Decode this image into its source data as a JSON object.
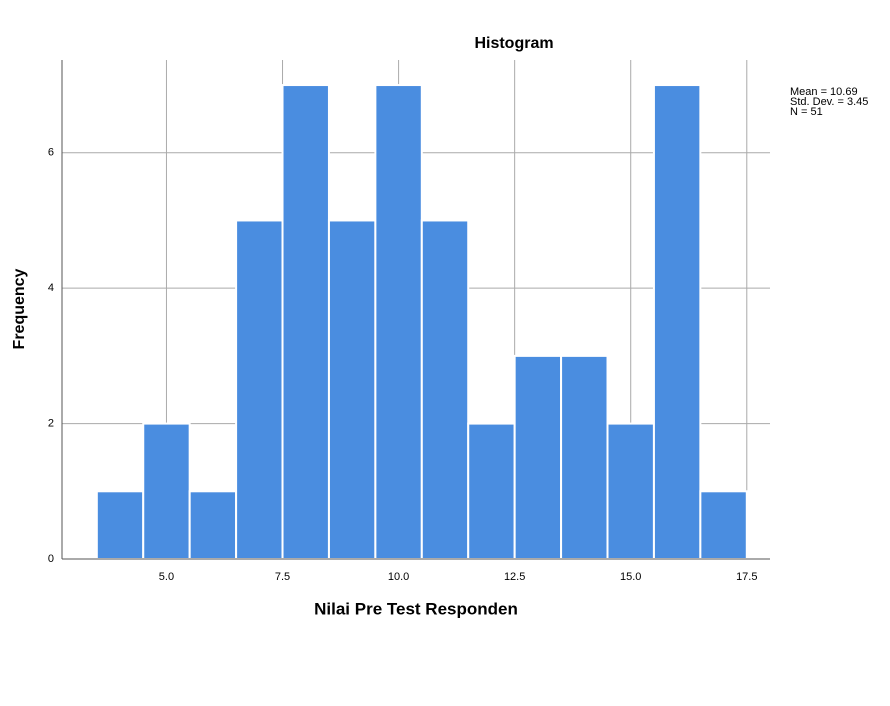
{
  "chart_data": {
    "type": "histogram",
    "title": "Histogram",
    "xlabel": "Nilai Pre Test Responden",
    "ylabel": "Frequency",
    "bins": [
      3.5,
      4.5,
      5.5,
      6.5,
      7.5,
      8.5,
      9.5,
      10.5,
      11.5,
      12.5,
      13.5,
      14.5,
      15.5,
      16.5,
      17.5
    ],
    "counts": [
      1,
      2,
      1,
      5,
      7,
      5,
      7,
      5,
      2,
      3,
      3,
      2,
      7,
      1
    ],
    "color": "#4a8de0",
    "xlim": [
      2.75,
      18.0
    ],
    "xticks": [
      {
        "value": 5,
        "label": "5.0"
      },
      7.5,
      {
        "value": 10,
        "label": "10.0"
      },
      12.5,
      {
        "value": 15,
        "label": "15.0"
      },
      17.5
    ],
    "ylim": [
      0,
      7.37
    ],
    "yticks": [
      0,
      2,
      4,
      6
    ],
    "grid": true,
    "stats": [
      "Mean = 10.69",
      "Std. Dev. = 3.45",
      "N = 51"
    ]
  }
}
